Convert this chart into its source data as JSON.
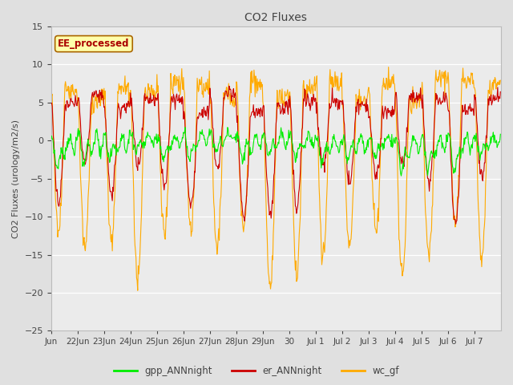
{
  "title": "CO2 Fluxes",
  "ylabel": "CO2 Fluxes (urology/m2/s)",
  "ylim": [
    -25,
    15
  ],
  "yticks": [
    -25,
    -20,
    -15,
    -10,
    -5,
    0,
    5,
    10,
    15
  ],
  "bg_color": "#e0e0e0",
  "plot_bg": "#ebebeb",
  "legend_labels": [
    "gpp_ANNnight",
    "er_ANNnight",
    "wc_gf"
  ],
  "watermark_text": "EE_processed",
  "watermark_color": "#aa0000",
  "watermark_bg": "#ffffaa",
  "watermark_border": "#aa6600",
  "n_days": 17,
  "n_per_day": 48,
  "gpp_color": "#00ee00",
  "er_color": "#cc0000",
  "wc_color": "#ffaa00",
  "line_width": 0.8,
  "figsize": [
    6.4,
    4.8
  ],
  "dpi": 100
}
